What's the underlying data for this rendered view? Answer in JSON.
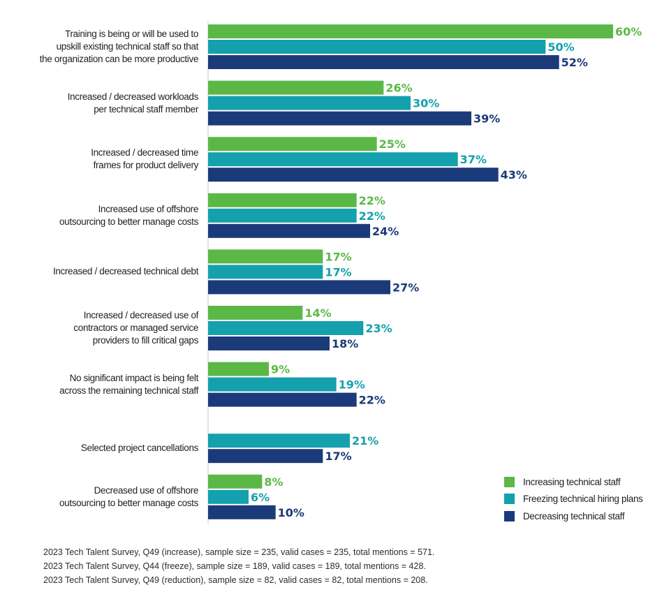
{
  "chart_data": {
    "type": "bar",
    "orientation": "horizontal",
    "unit": "%",
    "categories": [
      "Training is being or will be used to upskill existing technical staff so that the organization can be more productive",
      "Increased / decreased workloads per technical staff member",
      "Increased / decreased time frames for product delivery",
      "Increased use of offshore outsourcing to better manage costs",
      "Increased / decreased technical debt",
      "Increased / decreased use of contractors or managed service providers to fill critical gaps",
      "No significant impact is being felt across the remaining technical staff",
      "Selected project cancellations",
      "Decreased use of offshore outsourcing to better manage costs"
    ],
    "category_lines": [
      [
        "Training is being or will be used to",
        "upskill existing technical staff so that",
        "the organization can be more productive"
      ],
      [
        "Increased / decreased workloads",
        "per technical staff member"
      ],
      [
        "Increased / decreased time",
        "frames for product delivery"
      ],
      [
        "Increased use of offshore",
        "outsourcing to better manage costs"
      ],
      [
        "Increased / decreased technical debt"
      ],
      [
        "Increased / decreased use of",
        "contractors or managed service",
        "providers to fill critical gaps"
      ],
      [
        "No significant impact is being felt",
        "across the remaining technical staff"
      ],
      [
        "Selected project cancellations"
      ],
      [
        "Decreased use of offshore",
        "outsourcing to better manage costs"
      ]
    ],
    "series": [
      {
        "name": "Increasing technical staff",
        "color": "#5bb847",
        "values": [
          60,
          26,
          25,
          22,
          17,
          14,
          9,
          null,
          8
        ]
      },
      {
        "name": "Freezing technical hiring plans",
        "color": "#14a0ad",
        "values": [
          50,
          30,
          37,
          22,
          17,
          23,
          19,
          21,
          6
        ]
      },
      {
        "name": "Decreasing technical staff",
        "color": "#1b3a7a",
        "values": [
          52,
          39,
          43,
          24,
          27,
          18,
          22,
          17,
          10
        ]
      }
    ],
    "xlim": [
      0,
      60
    ],
    "title": "",
    "xlabel": "",
    "ylabel": "",
    "legend_position": "bottom-right"
  },
  "footnotes": [
    "2023 Tech Talent Survey, Q49 (increase), sample size = 235, valid cases = 235, total mentions = 571.",
    "2023 Tech Talent Survey, Q44 (freeze), sample size = 189, valid cases = 189, total mentions  = 428.",
    "2023 Tech Talent Survey, Q49 (reduction), sample size = 82, valid cases = 82, total mentions  = 208."
  ]
}
